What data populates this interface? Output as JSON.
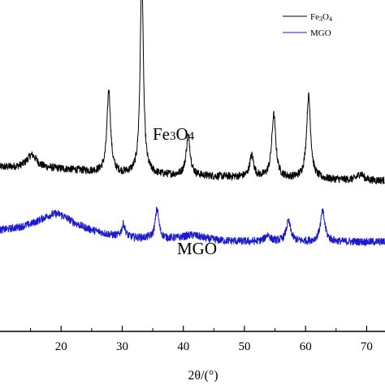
{
  "chart_data": {
    "type": "line",
    "xlabel": "2θ/(°)",
    "ylabel": "",
    "xlim": [
      10,
      73
    ],
    "ylim": [
      0,
      100
    ],
    "x_ticks": [
      20,
      30,
      40,
      50,
      60,
      70
    ],
    "x_tick_labels": [
      "20",
      "30",
      "40",
      "50",
      "60",
      "70"
    ],
    "grid": false,
    "legend_position": "top-right",
    "series": [
      {
        "name": "Fe3O4",
        "name_main": "Fe",
        "name_sub1": "3",
        "name_mid": "O",
        "name_sub2": "4",
        "color": "#000000",
        "baseline": [
          [
            10,
            49.5
          ],
          [
            20,
            49
          ],
          [
            30,
            47.5
          ],
          [
            40,
            47
          ],
          [
            50,
            46.5
          ],
          [
            60,
            46
          ],
          [
            70,
            45.5
          ],
          [
            73,
            45.5
          ]
        ],
        "peaks": [
          {
            "x": 15.2,
            "height": 4,
            "width": 1.0
          },
          {
            "x": 27.8,
            "height": 25,
            "width": 0.35
          },
          {
            "x": 33.2,
            "height": 62,
            "width": 0.3
          },
          {
            "x": 40.8,
            "height": 12,
            "width": 0.4
          },
          {
            "x": 51.2,
            "height": 6.5,
            "width": 0.4
          },
          {
            "x": 54.8,
            "height": 19,
            "width": 0.4
          },
          {
            "x": 60.5,
            "height": 25,
            "width": 0.4
          },
          {
            "x": 69.0,
            "height": 2,
            "width": 0.6
          }
        ],
        "noise": 1.2
      },
      {
        "name": "MGO",
        "color": "#1a1acc",
        "baseline": [
          [
            10,
            30
          ],
          [
            20,
            31
          ],
          [
            30,
            28
          ],
          [
            40,
            27.5
          ],
          [
            50,
            27
          ],
          [
            60,
            27
          ],
          [
            70,
            27
          ],
          [
            73,
            27
          ]
        ],
        "peaks": [
          {
            "x": 19.0,
            "height": 4.5,
            "width": 3.5
          },
          {
            "x": 30.2,
            "height": 4,
            "width": 0.35
          },
          {
            "x": 35.7,
            "height": 9,
            "width": 0.35
          },
          {
            "x": 41.5,
            "height": 1.5,
            "width": 2.0
          },
          {
            "x": 53.8,
            "height": 2,
            "width": 0.5
          },
          {
            "x": 57.2,
            "height": 6,
            "width": 0.45
          },
          {
            "x": 62.8,
            "height": 9,
            "width": 0.45
          }
        ],
        "noise": 1.2
      }
    ],
    "annotations": [
      {
        "text_main": "Fe",
        "text_sub1": "3",
        "text_mid": "O",
        "text_sub2": "4",
        "x": 47,
        "y": 70
      },
      {
        "text": "MGO",
        "x": 46,
        "y": 37
      }
    ]
  }
}
